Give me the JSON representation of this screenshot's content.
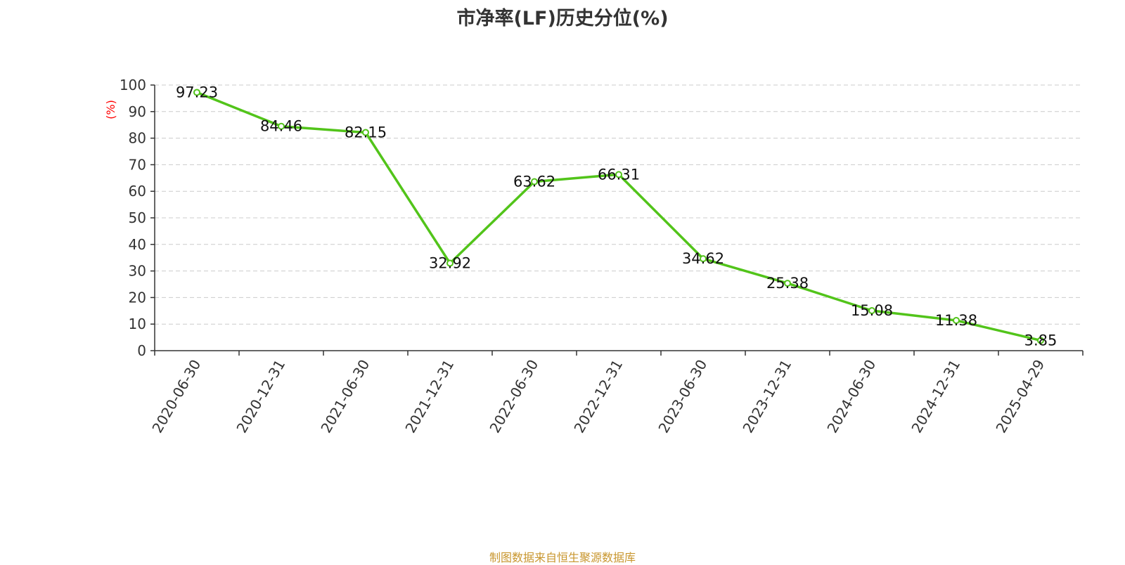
{
  "chart_data": {
    "type": "line",
    "title": "市净率(LF)历史分位(%)",
    "xlabel": "",
    "ylabel": "(%)",
    "categories": [
      "2020-06-30",
      "2020-12-31",
      "2021-06-30",
      "2021-12-31",
      "2022-06-30",
      "2022-12-31",
      "2023-06-30",
      "2023-12-31",
      "2024-06-30",
      "2024-12-31",
      "2025-04-29"
    ],
    "series": [
      {
        "values": [
          97.23,
          84.46,
          82.15,
          32.92,
          63.62,
          66.31,
          34.62,
          25.38,
          15.08,
          11.38,
          3.85
        ]
      }
    ],
    "data_labels": [
      "97.23",
      "84.46",
      "82.15",
      "32.92",
      "63.62",
      "66.31",
      "34.62",
      "25.38",
      "15.08",
      "11.38",
      "3.85"
    ],
    "yticks": [
      "0",
      "10",
      "20",
      "30",
      "40",
      "50",
      "60",
      "70",
      "80",
      "90",
      "100"
    ],
    "ylim": [
      0,
      100
    ],
    "grid": true,
    "legend": "none",
    "line_color": "#52c41a",
    "ylabel_color": "#ff0000"
  },
  "source_text": "制图数据来自恒生聚源数据库"
}
